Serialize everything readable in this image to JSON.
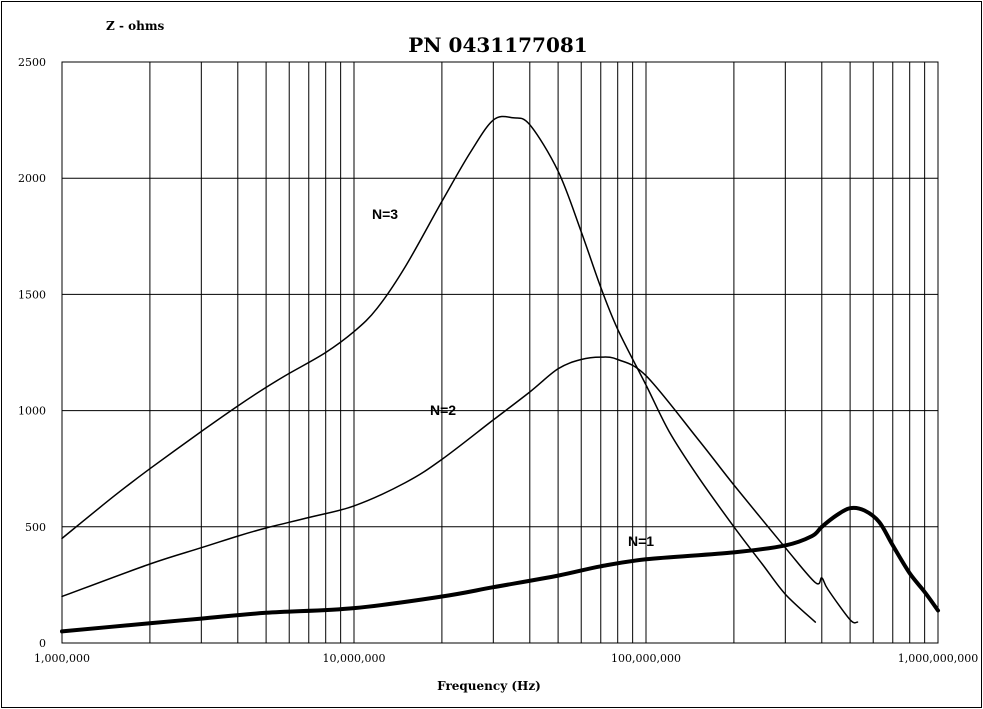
{
  "chart_data": {
    "type": "line",
    "title": "PN 0431177081",
    "ylabel": "Z  - ohms",
    "xlabel": "Frequency (Hz)",
    "x_scale": "log",
    "xlim": [
      1000000,
      1000000000
    ],
    "ylim": [
      0,
      2500
    ],
    "grid": true,
    "x_tick_labels": [
      "1,000,000",
      "10,000,000",
      "100,000,000",
      "1,000,000,000"
    ],
    "y_tick_labels": [
      "0",
      "500",
      "1000",
      "1500",
      "2000",
      "2500"
    ],
    "series": [
      {
        "name": "N=3",
        "line_width": "thin",
        "x": [
          1000000,
          1500000,
          2000000,
          3000000,
          4000000,
          5000000,
          6000000,
          8000000,
          10000000,
          12000000,
          15000000,
          20000000,
          25000000,
          30000000,
          35000000,
          40000000,
          50000000,
          60000000,
          70000000,
          80000000,
          100000000,
          120000000,
          150000000,
          200000000,
          250000000,
          300000000,
          380000000
        ],
        "y": [
          450,
          630,
          750,
          910,
          1020,
          1100,
          1160,
          1250,
          1340,
          1440,
          1620,
          1900,
          2110,
          2250,
          2260,
          2230,
          2030,
          1770,
          1530,
          1350,
          1110,
          910,
          720,
          500,
          340,
          210,
          90
        ]
      },
      {
        "name": "N=2",
        "line_width": "thin",
        "x": [
          1000000,
          2000000,
          3000000,
          4000000,
          5000000,
          7000000,
          10000000,
          15000000,
          20000000,
          30000000,
          40000000,
          50000000,
          60000000,
          70000000,
          80000000,
          100000000,
          150000000,
          200000000,
          300000000,
          380000000,
          400000000,
          420000000,
          500000000,
          530000000
        ],
        "y": [
          200,
          340,
          410,
          460,
          495,
          540,
          590,
          690,
          790,
          960,
          1080,
          1180,
          1220,
          1230,
          1220,
          1150,
          880,
          680,
          410,
          260,
          280,
          230,
          100,
          90
        ]
      },
      {
        "name": "N=1",
        "line_width": "thick",
        "x": [
          1000000,
          2000000,
          3000000,
          5000000,
          10000000,
          20000000,
          30000000,
          50000000,
          70000000,
          100000000,
          200000000,
          300000000,
          370000000,
          400000000,
          450000000,
          500000000,
          560000000,
          630000000,
          700000000,
          800000000,
          900000000,
          1000000000
        ],
        "y": [
          50,
          85,
          105,
          130,
          150,
          200,
          240,
          290,
          330,
          360,
          390,
          420,
          460,
          500,
          550,
          580,
          570,
          520,
          420,
          300,
          220,
          140
        ]
      }
    ]
  }
}
